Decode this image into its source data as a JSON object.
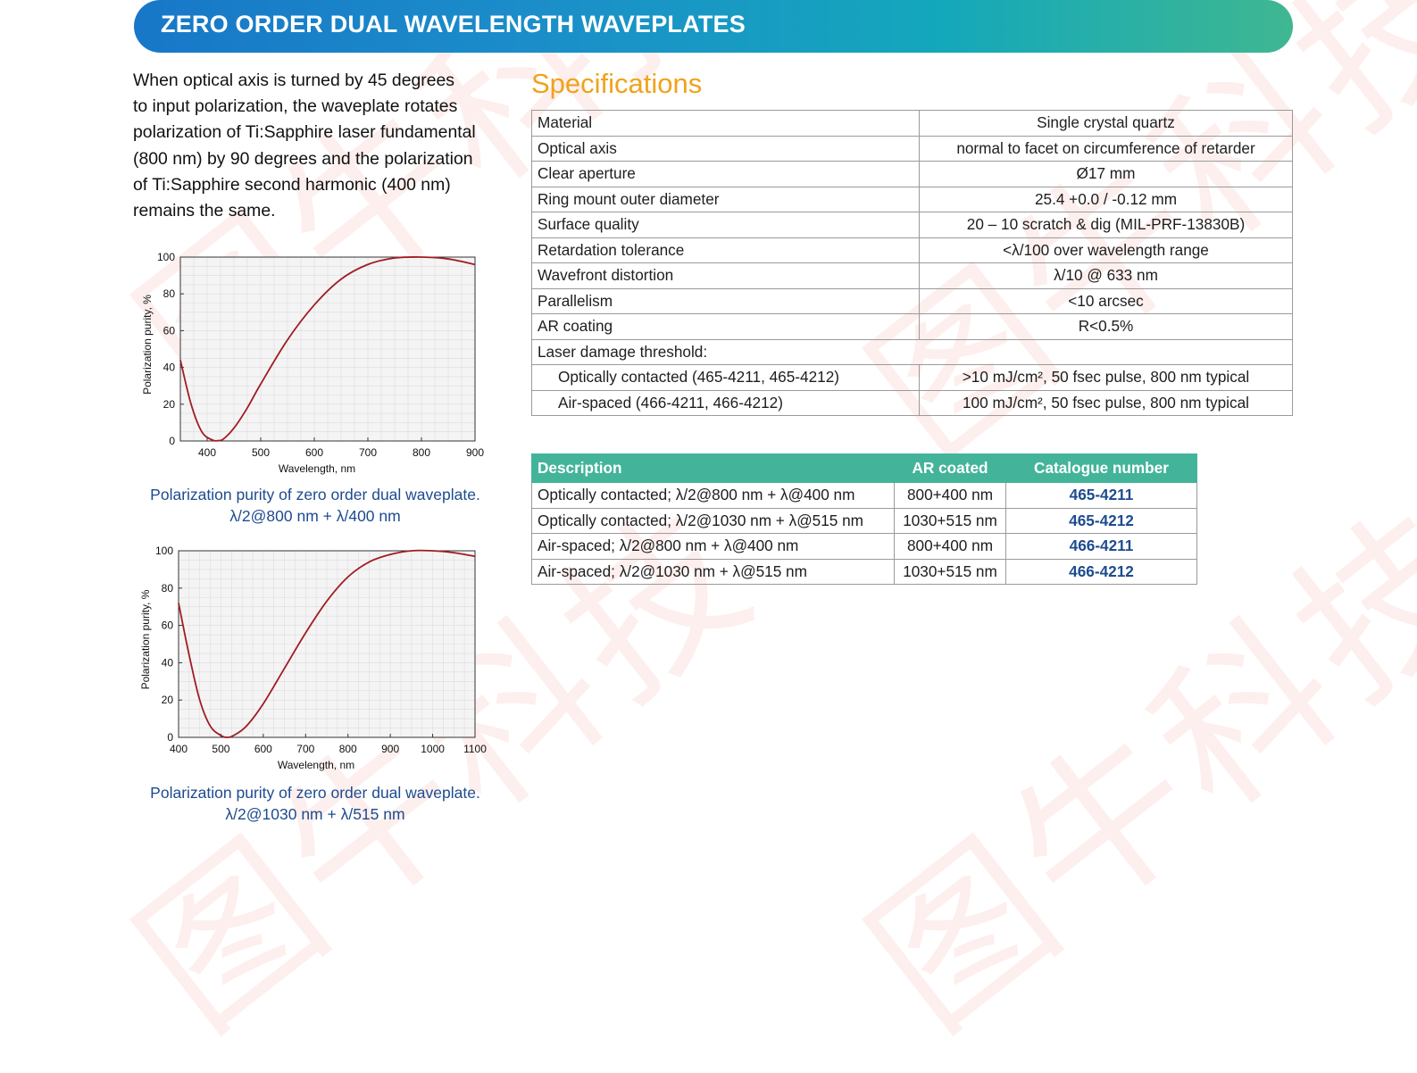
{
  "watermark": "图牛科技",
  "banner": {
    "title": "ZERO ORDER DUAL WAVELENGTH WAVEPLATES"
  },
  "intro": {
    "lines": [
      "When optical axis is turned by 45 degrees",
      "to input polarization, the waveplate rotates",
      "polarization of Ti:Sapphire laser fundamental",
      "(800 nm) by 90 degrees and the polarization",
      "of Ti:Sapphire second harmonic (400 nm)",
      "remains the same."
    ]
  },
  "specifications": {
    "heading": "Specifications",
    "rows": [
      {
        "key": "Material",
        "value": "Single crystal quartz"
      },
      {
        "key": "Optical axis",
        "value": "normal to facet on circumference of retarder"
      },
      {
        "key": "Clear aperture",
        "value": "Ø17 mm"
      },
      {
        "key": "Ring mount outer diameter",
        "value": "25.4 +0.0 / -0.12 mm"
      },
      {
        "key": "Surface quality",
        "value": "20 – 10 scratch & dig (MIL-PRF-13830B)"
      },
      {
        "key": "Retardation tolerance",
        "value": "<λ/100 over wavelength range"
      },
      {
        "key": "Wavefront distortion",
        "value": "λ/10 @ 633 nm"
      },
      {
        "key": "Parallelism",
        "value": "<10 arcsec"
      },
      {
        "key": "AR coating",
        "value": "R<0.5%"
      }
    ],
    "ldt_label": "Laser damage threshold:",
    "ldt_rows": [
      {
        "key": "Optically contacted (465-4211, 465-4212)",
        "value": ">10 mJ/cm², 50 fsec pulse, 800 nm typical"
      },
      {
        "key": "Air-spaced (466-4211, 466-4212)",
        "value": "100 mJ/cm², 50 fsec pulse, 800 nm typical"
      }
    ]
  },
  "ordering": {
    "headers": [
      "Description",
      "AR coated",
      "Catalogue number"
    ],
    "rows": [
      {
        "description": "Optically contacted; λ/2@800 nm + λ@400 nm",
        "ar": "800+400 nm",
        "catalogue": "465-4211"
      },
      {
        "description": "Optically contacted; λ/2@1030 nm + λ@515 nm",
        "ar": "1030+515 nm",
        "catalogue": "465-4212"
      },
      {
        "description": "Air-spaced; λ/2@800 nm + λ@400 nm",
        "ar": "800+400 nm",
        "catalogue": "466-4211"
      },
      {
        "description": "Air-spaced; λ/2@1030 nm + λ@515 nm",
        "ar": "1030+515 nm",
        "catalogue": "466-4212"
      }
    ]
  },
  "captions": {
    "chart1": [
      "Polarization purity of zero order dual waveplate.",
      "λ/2@800 nm + λ/400 nm"
    ],
    "chart2": [
      "Polarization purity of zero order dual waveplate.",
      "λ/2@1030 nm + λ/515 nm"
    ]
  },
  "colors": {
    "curve": "#a01c24",
    "accent": "#f0a21c",
    "table_header": "#43b49a",
    "link": "#1d4b8f"
  },
  "chart_data": [
    {
      "type": "line",
      "xlabel": "Wavelength, nm",
      "ylabel": "Polarization purity, %",
      "xlim": [
        350,
        900
      ],
      "ylim": [
        0,
        100
      ],
      "xticks": [
        400,
        500,
        600,
        700,
        800,
        900
      ],
      "yticks": [
        0,
        20,
        40,
        60,
        80,
        100
      ],
      "grid": true,
      "x": [
        350,
        370,
        390,
        410,
        420,
        430,
        450,
        475,
        500,
        550,
        600,
        650,
        700,
        750,
        800,
        850,
        900
      ],
      "y": [
        44,
        20,
        5,
        0.5,
        0.2,
        1,
        7,
        18,
        31,
        55,
        74,
        88,
        96,
        99.5,
        100,
        99,
        96
      ]
    },
    {
      "type": "line",
      "xlabel": "Wavelength, nm",
      "ylabel": "Polarization purity, %",
      "xlim": [
        400,
        1100
      ],
      "ylim": [
        0,
        100
      ],
      "xticks": [
        400,
        500,
        600,
        700,
        800,
        900,
        1000,
        1100
      ],
      "yticks": [
        0,
        20,
        40,
        60,
        80,
        100
      ],
      "grid": true,
      "x": [
        400,
        425,
        450,
        475,
        500,
        515,
        530,
        560,
        600,
        650,
        700,
        750,
        800,
        850,
        900,
        950,
        1000,
        1050,
        1100
      ],
      "y": [
        72,
        44,
        20,
        6,
        1,
        0,
        1,
        6,
        18,
        37,
        56,
        73,
        86,
        94,
        98,
        100,
        100,
        99,
        97
      ]
    }
  ]
}
